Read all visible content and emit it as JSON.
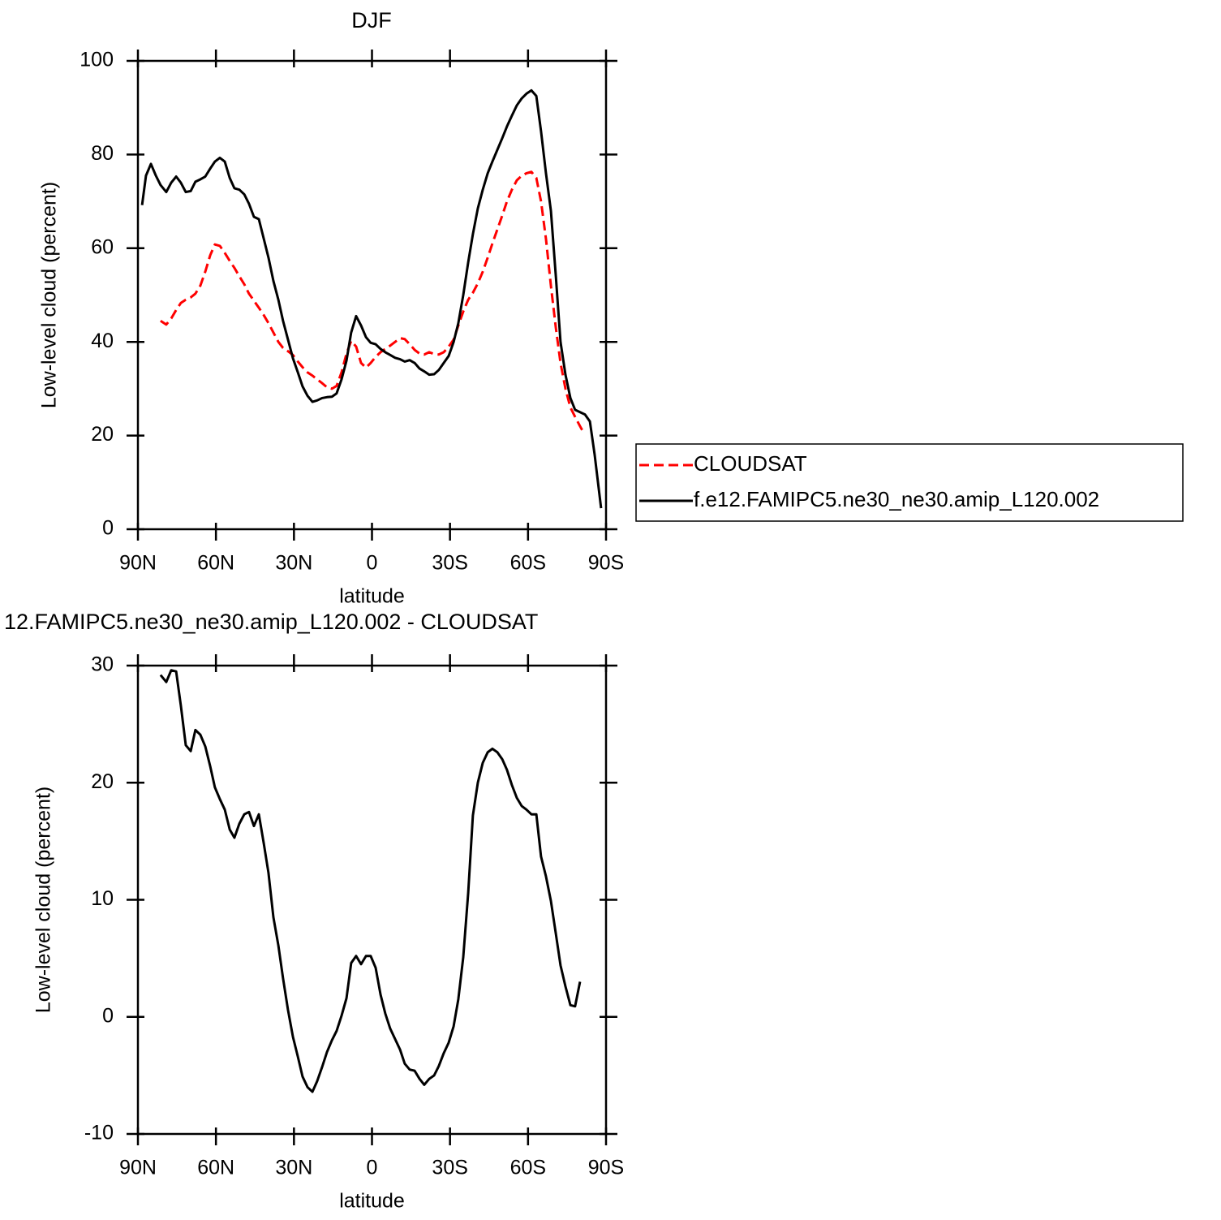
{
  "chart_data": [
    {
      "type": "line",
      "title": "DJF",
      "xlabel": "latitude",
      "ylabel": "Low-level cloud (percent)",
      "xlim": [
        90,
        -90
      ],
      "ylim": [
        0,
        100
      ],
      "xticks": [
        {
          "value": 90,
          "label": "90N"
        },
        {
          "value": 60,
          "label": "60N"
        },
        {
          "value": 30,
          "label": "30N"
        },
        0,
        {
          "value": -30,
          "label": "30S"
        },
        {
          "value": -60,
          "label": "60S"
        },
        {
          "value": -90,
          "label": "90S"
        }
      ],
      "yticks": [
        0,
        20,
        40,
        60,
        80,
        100
      ],
      "legend": "right",
      "series": [
        {
          "name": "CLOUDSAT",
          "color": "#ff0000",
          "dash": true,
          "x": [
            81.3,
            79.1,
            77.2,
            75.3,
            73.5,
            71.6,
            69.7,
            67.9,
            66.0,
            64.1,
            62.2,
            60.4,
            58.5,
            56.6,
            54.7,
            52.9,
            51.0,
            49.1,
            47.3,
            45.4,
            43.5,
            41.6,
            39.8,
            37.9,
            36.0,
            34.2,
            32.3,
            30.4,
            28.5,
            26.7,
            24.8,
            22.9,
            21.1,
            19.2,
            17.3,
            15.4,
            13.6,
            11.7,
            9.8,
            8.0,
            6.1,
            4.2,
            2.3,
            0.5,
            -1.4,
            -3.3,
            -5.1,
            -7.0,
            -8.9,
            -10.8,
            -12.6,
            -14.5,
            -16.4,
            -18.3,
            -20.1,
            -22.0,
            -23.9,
            -25.7,
            -27.6,
            -29.5,
            -31.4,
            -33.2,
            -35.1,
            -37.0,
            -38.8,
            -40.7,
            -42.6,
            -44.5,
            -46.3,
            -48.2,
            -50.1,
            -51.9,
            -53.8,
            -55.7,
            -57.6,
            -59.4,
            -61.3,
            -63.2,
            -65.0,
            -66.9,
            -68.8,
            -70.7,
            -72.5,
            -74.4,
            -76.3,
            -78.1,
            -80.0,
            -81.0
          ],
          "values": [
            44.5,
            43.7,
            45,
            46.8,
            48.3,
            49,
            49.5,
            50.3,
            52,
            55,
            58.5,
            60.8,
            60.5,
            59,
            57.3,
            55.8,
            54,
            52.3,
            50.3,
            48.8,
            47.3,
            45.7,
            44,
            42,
            40,
            38.7,
            38,
            37.2,
            35.8,
            34.6,
            33.5,
            32.8,
            32,
            31.2,
            30.3,
            30,
            30.6,
            33.5,
            37.5,
            40.2,
            39,
            35.5,
            34.5,
            35.5,
            36.8,
            37.8,
            38.5,
            39.2,
            40,
            40.8,
            40.6,
            39.5,
            38.3,
            37.5,
            37.3,
            37.8,
            37.4,
            37.3,
            37.8,
            39,
            40.5,
            43.5,
            46.5,
            49,
            50.5,
            52.5,
            55,
            58,
            61,
            64,
            67,
            70,
            72.5,
            74.5,
            75.5,
            76,
            76.3,
            75,
            70,
            62,
            52,
            43,
            35.5,
            30,
            26,
            24,
            22,
            21
          ]
        },
        {
          "name": "f.e12.FAMIPC5.ne30_ne30.amip_L120.002",
          "color": "#000000",
          "dash": false,
          "x": [
            88.4,
            86.9,
            85.0,
            83.1,
            81.3,
            79.1,
            77.2,
            75.3,
            73.5,
            71.6,
            69.7,
            67.9,
            66.0,
            64.1,
            62.2,
            60.4,
            58.5,
            56.6,
            54.7,
            52.9,
            51.0,
            49.1,
            47.3,
            45.4,
            43.5,
            41.6,
            39.8,
            37.9,
            36.0,
            34.2,
            32.3,
            30.4,
            28.5,
            26.7,
            24.8,
            22.9,
            21.1,
            19.2,
            17.3,
            15.4,
            13.6,
            11.7,
            9.8,
            8.0,
            6.1,
            4.2,
            2.3,
            0.5,
            -1.4,
            -3.3,
            -5.1,
            -7.0,
            -8.9,
            -10.8,
            -12.6,
            -14.5,
            -16.4,
            -18.3,
            -20.1,
            -22.0,
            -23.9,
            -25.7,
            -27.6,
            -29.5,
            -31.4,
            -33.2,
            -35.1,
            -37.0,
            -38.8,
            -40.7,
            -42.6,
            -44.5,
            -46.3,
            -48.2,
            -50.1,
            -51.9,
            -53.8,
            -55.7,
            -57.6,
            -59.4,
            -61.3,
            -63.2,
            -65.0,
            -66.9,
            -68.8,
            -70.7,
            -72.5,
            -74.4,
            -76.3,
            -78.1,
            -80.0,
            -81.9,
            -83.8,
            -85.6,
            -88.1
          ],
          "values": [
            69.2,
            75.5,
            78,
            75.5,
            73.5,
            72,
            74,
            75.3,
            74,
            72,
            72.2,
            74.2,
            74.7,
            75.3,
            77,
            78.5,
            79.3,
            78.5,
            75,
            72.8,
            72.5,
            71.5,
            69.5,
            66.7,
            66.2,
            62,
            58,
            53,
            49,
            44.5,
            40.5,
            36.5,
            33.5,
            30.5,
            28.5,
            27.2,
            27.5,
            28,
            28.2,
            28.3,
            29,
            32,
            36,
            42,
            45.5,
            43.5,
            41,
            39.8,
            39.5,
            38.5,
            37.8,
            37.2,
            36.6,
            36.3,
            35.8,
            36.1,
            35.5,
            34.3,
            33.7,
            33,
            33.1,
            34,
            35.5,
            37,
            40,
            44,
            50,
            57,
            63,
            68.5,
            72.5,
            76,
            78.5,
            81,
            83.5,
            86,
            88.3,
            90.5,
            92,
            93,
            93.7,
            92.5,
            85,
            76,
            68,
            54,
            40,
            33,
            28,
            25.5,
            25,
            24.5,
            23,
            16,
            4.5
          ]
        }
      ]
    },
    {
      "type": "line",
      "title": "12.FAMIPC5.ne30_ne30.amip_L120.002 - CLOUDSAT",
      "xlabel": "latitude",
      "ylabel": "Low-level cloud (percent)",
      "xlim": [
        90,
        -90
      ],
      "ylim": [
        -10,
        30
      ],
      "xticks": [
        {
          "value": 90,
          "label": "90N"
        },
        {
          "value": 60,
          "label": "60N"
        },
        {
          "value": 30,
          "label": "30N"
        },
        0,
        {
          "value": -30,
          "label": "30S"
        },
        {
          "value": -60,
          "label": "60S"
        },
        {
          "value": -90,
          "label": "90S"
        }
      ],
      "yticks": [
        -10,
        0,
        10,
        20,
        30
      ],
      "series": [
        {
          "color": "#000000",
          "dash": false,
          "x": [
            81.3,
            79.1,
            77.2,
            75.3,
            73.5,
            71.6,
            69.7,
            67.9,
            66.0,
            64.1,
            62.2,
            60.4,
            58.5,
            56.6,
            54.7,
            52.9,
            51.0,
            49.1,
            47.3,
            45.4,
            43.5,
            41.6,
            39.8,
            37.9,
            36.0,
            34.2,
            32.3,
            30.4,
            28.5,
            26.7,
            24.8,
            22.9,
            21.1,
            19.2,
            17.3,
            15.4,
            13.6,
            11.7,
            9.8,
            8.0,
            6.1,
            4.2,
            2.3,
            0.5,
            -1.4,
            -3.3,
            -5.1,
            -7.0,
            -8.9,
            -10.8,
            -12.6,
            -14.5,
            -16.4,
            -18.3,
            -20.1,
            -22.0,
            -23.9,
            -25.7,
            -27.6,
            -29.5,
            -31.4,
            -33.2,
            -35.1,
            -37.0,
            -38.8,
            -40.7,
            -42.6,
            -44.5,
            -46.3,
            -48.2,
            -50.1,
            -51.9,
            -53.8,
            -55.7,
            -57.6,
            -59.4,
            -61.3,
            -63.2,
            -65.0,
            -66.9,
            -68.8,
            -70.7,
            -72.5,
            -74.4,
            -76.3,
            -78.1,
            -80.0
          ],
          "values": [
            29.2,
            28.6,
            29.6,
            29.5,
            26.6,
            23.2,
            22.7,
            24.5,
            24.1,
            23.1,
            21.4,
            19.6,
            18.6,
            17.7,
            16.0,
            15.3,
            16.5,
            17.3,
            17.5,
            16.3,
            17.3,
            14.8,
            12.3,
            8.5,
            6.1,
            3.3,
            0.6,
            -1.7,
            -3.4,
            -5.1,
            -6.0,
            -6.4,
            -5.5,
            -4.3,
            -3.0,
            -2.0,
            -1.2,
            0.1,
            1.6,
            4.6,
            5.2,
            4.5,
            5.2,
            5.2,
            4.2,
            1.9,
            0.3,
            -1.0,
            -1.9,
            -2.8,
            -4.0,
            -4.5,
            -4.6,
            -5.3,
            -5.8,
            -5.3,
            -5.0,
            -4.2,
            -3.1,
            -2.2,
            -0.8,
            1.5,
            5.1,
            10.6,
            17.2,
            20.0,
            21.7,
            22.6,
            22.9,
            22.6,
            22.0,
            21.1,
            19.8,
            18.7,
            18.0,
            17.7,
            17.3,
            17.3,
            13.7,
            12.0,
            9.9,
            7.1,
            4.4,
            2.6,
            1.0,
            0.9,
            3.0
          ]
        }
      ]
    }
  ]
}
